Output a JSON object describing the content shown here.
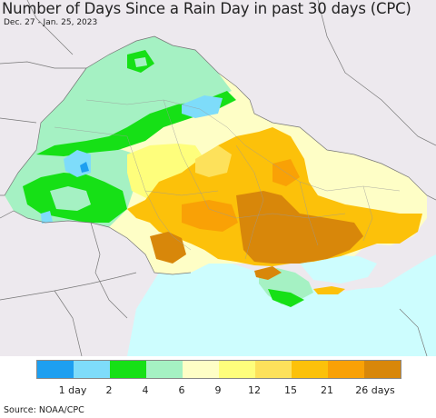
{
  "title": "Number of Days Since a Rain Day in past 30 days (CPC)",
  "subtitle": "Dec. 27 - Jan. 25, 2023",
  "colors": {
    "land_outside": "#ede9ee",
    "sea": "#cdfdfe",
    "border": "#777777"
  },
  "legend": {
    "colors": [
      "#1e9ff0",
      "#7edcfa",
      "#16e016",
      "#a5f1c3",
      "#fefec6",
      "#fefe7c",
      "#fde15b",
      "#fcc10a",
      "#f9a106",
      "#d8870a"
    ],
    "labels": [
      "1 day",
      "2",
      "4",
      "6",
      "9",
      "12",
      "15",
      "21",
      "26 days"
    ]
  },
  "source": "Source: NOAA/CPC"
}
